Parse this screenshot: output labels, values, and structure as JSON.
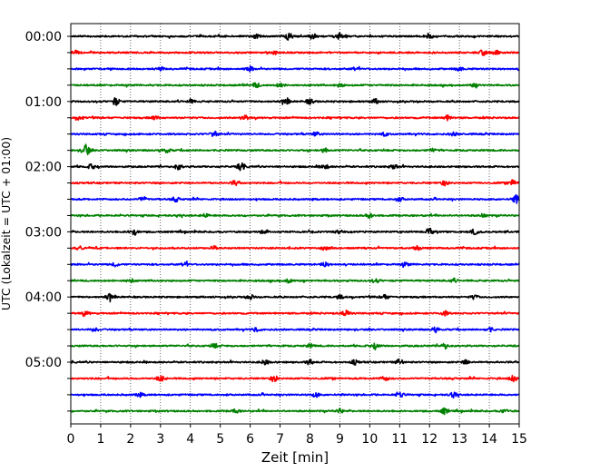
{
  "chart_data": {
    "type": "line",
    "title": "",
    "xlabel": "Zeit  [min]",
    "ylabel": "UTC (Lokalzeit = UTC + 01:00)",
    "xlim": [
      0,
      15
    ],
    "x_ticks": [
      0,
      1,
      2,
      3,
      4,
      5,
      6,
      7,
      8,
      9,
      10,
      11,
      12,
      13,
      14,
      15
    ],
    "x_tick_labels": [
      "0",
      "1",
      "2",
      "3",
      "4",
      "5",
      "6",
      "7",
      "8",
      "9",
      "10",
      "11",
      "12",
      "13",
      "14",
      "15"
    ],
    "y_tick_labels": [
      "00:00",
      "01:00",
      "02:00",
      "03:00",
      "04:00",
      "05:00"
    ],
    "grid": "vertical dotted at each minute",
    "trace_colors": [
      "#000000",
      "#ff0000",
      "#0000ff",
      "#008000"
    ],
    "traces": [
      {
        "start": "00:00",
        "color": "#000000",
        "bursts": [
          [
            7.3,
            0.55
          ],
          [
            8.1,
            0.45
          ],
          [
            9.0,
            0.5
          ],
          [
            6.2,
            0.3
          ],
          [
            12.0,
            0.3
          ]
        ]
      },
      {
        "start": "00:15",
        "color": "#ff0000",
        "bursts": [
          [
            0.2,
            0.3
          ],
          [
            6.8,
            0.25
          ],
          [
            13.8,
            0.45
          ],
          [
            14.2,
            0.35
          ]
        ]
      },
      {
        "start": "00:30",
        "color": "#0000ff",
        "bursts": [
          [
            6.0,
            0.35
          ],
          [
            3.0,
            0.25
          ],
          [
            13.0,
            0.3
          ],
          [
            9.5,
            0.25
          ]
        ]
      },
      {
        "start": "00:45",
        "color": "#008000",
        "bursts": [
          [
            6.2,
            0.35
          ],
          [
            7.0,
            0.3
          ],
          [
            9.0,
            0.25
          ],
          [
            13.5,
            0.25
          ]
        ]
      },
      {
        "start": "01:00",
        "color": "#000000",
        "bursts": [
          [
            1.5,
            0.6
          ],
          [
            7.2,
            0.45
          ],
          [
            8.0,
            0.4
          ],
          [
            4.0,
            0.3
          ],
          [
            10.2,
            0.35
          ]
        ]
      },
      {
        "start": "01:15",
        "color": "#ff0000",
        "bursts": [
          [
            0.3,
            0.35
          ],
          [
            2.8,
            0.35
          ],
          [
            5.8,
            0.45
          ],
          [
            12.6,
            0.4
          ]
        ]
      },
      {
        "start": "01:30",
        "color": "#0000ff",
        "bursts": [
          [
            4.8,
            0.4
          ],
          [
            8.2,
            0.3
          ],
          [
            10.5,
            0.25
          ],
          [
            12.8,
            0.25
          ]
        ]
      },
      {
        "start": "01:45",
        "color": "#008000",
        "bursts": [
          [
            0.5,
            1.0
          ],
          [
            3.2,
            0.35
          ],
          [
            8.5,
            0.3
          ],
          [
            12.1,
            0.25
          ]
        ]
      },
      {
        "start": "02:00",
        "color": "#000000",
        "bursts": [
          [
            0.7,
            0.35
          ],
          [
            3.6,
            0.45
          ],
          [
            5.7,
            0.55
          ],
          [
            8.5,
            0.4
          ],
          [
            10.8,
            0.35
          ]
        ]
      },
      {
        "start": "02:15",
        "color": "#ff0000",
        "bursts": [
          [
            5.5,
            0.35
          ],
          [
            12.5,
            0.35
          ],
          [
            14.8,
            0.45
          ]
        ]
      },
      {
        "start": "02:30",
        "color": "#0000ff",
        "bursts": [
          [
            2.4,
            0.4
          ],
          [
            3.5,
            0.35
          ],
          [
            11.0,
            0.35
          ],
          [
            14.9,
            0.7
          ]
        ]
      },
      {
        "start": "02:45",
        "color": "#008000",
        "bursts": [
          [
            10.0,
            0.4
          ],
          [
            4.5,
            0.25
          ],
          [
            13.8,
            0.25
          ]
        ]
      },
      {
        "start": "03:00",
        "color": "#000000",
        "bursts": [
          [
            2.1,
            0.55
          ],
          [
            12.0,
            0.5
          ],
          [
            13.5,
            0.4
          ],
          [
            6.5,
            0.3
          ],
          [
            9.0,
            0.3
          ]
        ]
      },
      {
        "start": "03:15",
        "color": "#ff0000",
        "bursts": [
          [
            0.3,
            0.3
          ],
          [
            4.8,
            0.3
          ],
          [
            8.5,
            0.25
          ],
          [
            11.6,
            0.3
          ]
        ]
      },
      {
        "start": "03:30",
        "color": "#0000ff",
        "bursts": [
          [
            1.5,
            0.3
          ],
          [
            3.8,
            0.35
          ],
          [
            8.5,
            0.35
          ],
          [
            11.2,
            0.3
          ]
        ]
      },
      {
        "start": "03:45",
        "color": "#008000",
        "bursts": [
          [
            2.0,
            0.3
          ],
          [
            7.3,
            0.4
          ],
          [
            10.2,
            0.3
          ],
          [
            12.8,
            0.25
          ]
        ]
      },
      {
        "start": "04:00",
        "color": "#000000",
        "bursts": [
          [
            1.3,
            0.5
          ],
          [
            6.0,
            0.35
          ],
          [
            9.0,
            0.3
          ],
          [
            10.5,
            0.35
          ],
          [
            13.5,
            0.3
          ]
        ]
      },
      {
        "start": "04:15",
        "color": "#ff0000",
        "bursts": [
          [
            0.5,
            0.35
          ],
          [
            9.2,
            0.55
          ],
          [
            12.5,
            0.35
          ]
        ]
      },
      {
        "start": "04:30",
        "color": "#0000ff",
        "bursts": [
          [
            0.8,
            0.3
          ],
          [
            6.2,
            0.3
          ],
          [
            12.2,
            0.35
          ],
          [
            14.0,
            0.35
          ]
        ]
      },
      {
        "start": "04:45",
        "color": "#008000",
        "bursts": [
          [
            10.2,
            0.45
          ],
          [
            12.5,
            0.45
          ],
          [
            4.8,
            0.3
          ],
          [
            8.0,
            0.25
          ]
        ]
      },
      {
        "start": "05:00",
        "color": "#000000",
        "bursts": [
          [
            6.5,
            0.35
          ],
          [
            8.0,
            0.4
          ],
          [
            9.5,
            0.35
          ],
          [
            11.0,
            0.45
          ],
          [
            13.2,
            0.35
          ]
        ]
      },
      {
        "start": "05:15",
        "color": "#ff0000",
        "bursts": [
          [
            3.0,
            0.45
          ],
          [
            6.8,
            0.45
          ],
          [
            10.5,
            0.35
          ],
          [
            14.8,
            0.45
          ]
        ]
      },
      {
        "start": "05:30",
        "color": "#0000ff",
        "bursts": [
          [
            2.3,
            0.3
          ],
          [
            8.2,
            0.35
          ],
          [
            11.0,
            0.5
          ],
          [
            12.8,
            0.35
          ]
        ]
      },
      {
        "start": "05:45",
        "color": "#008000",
        "bursts": [
          [
            5.5,
            0.3
          ],
          [
            9.0,
            0.3
          ],
          [
            12.5,
            0.45
          ],
          [
            14.5,
            0.3
          ]
        ]
      }
    ]
  }
}
